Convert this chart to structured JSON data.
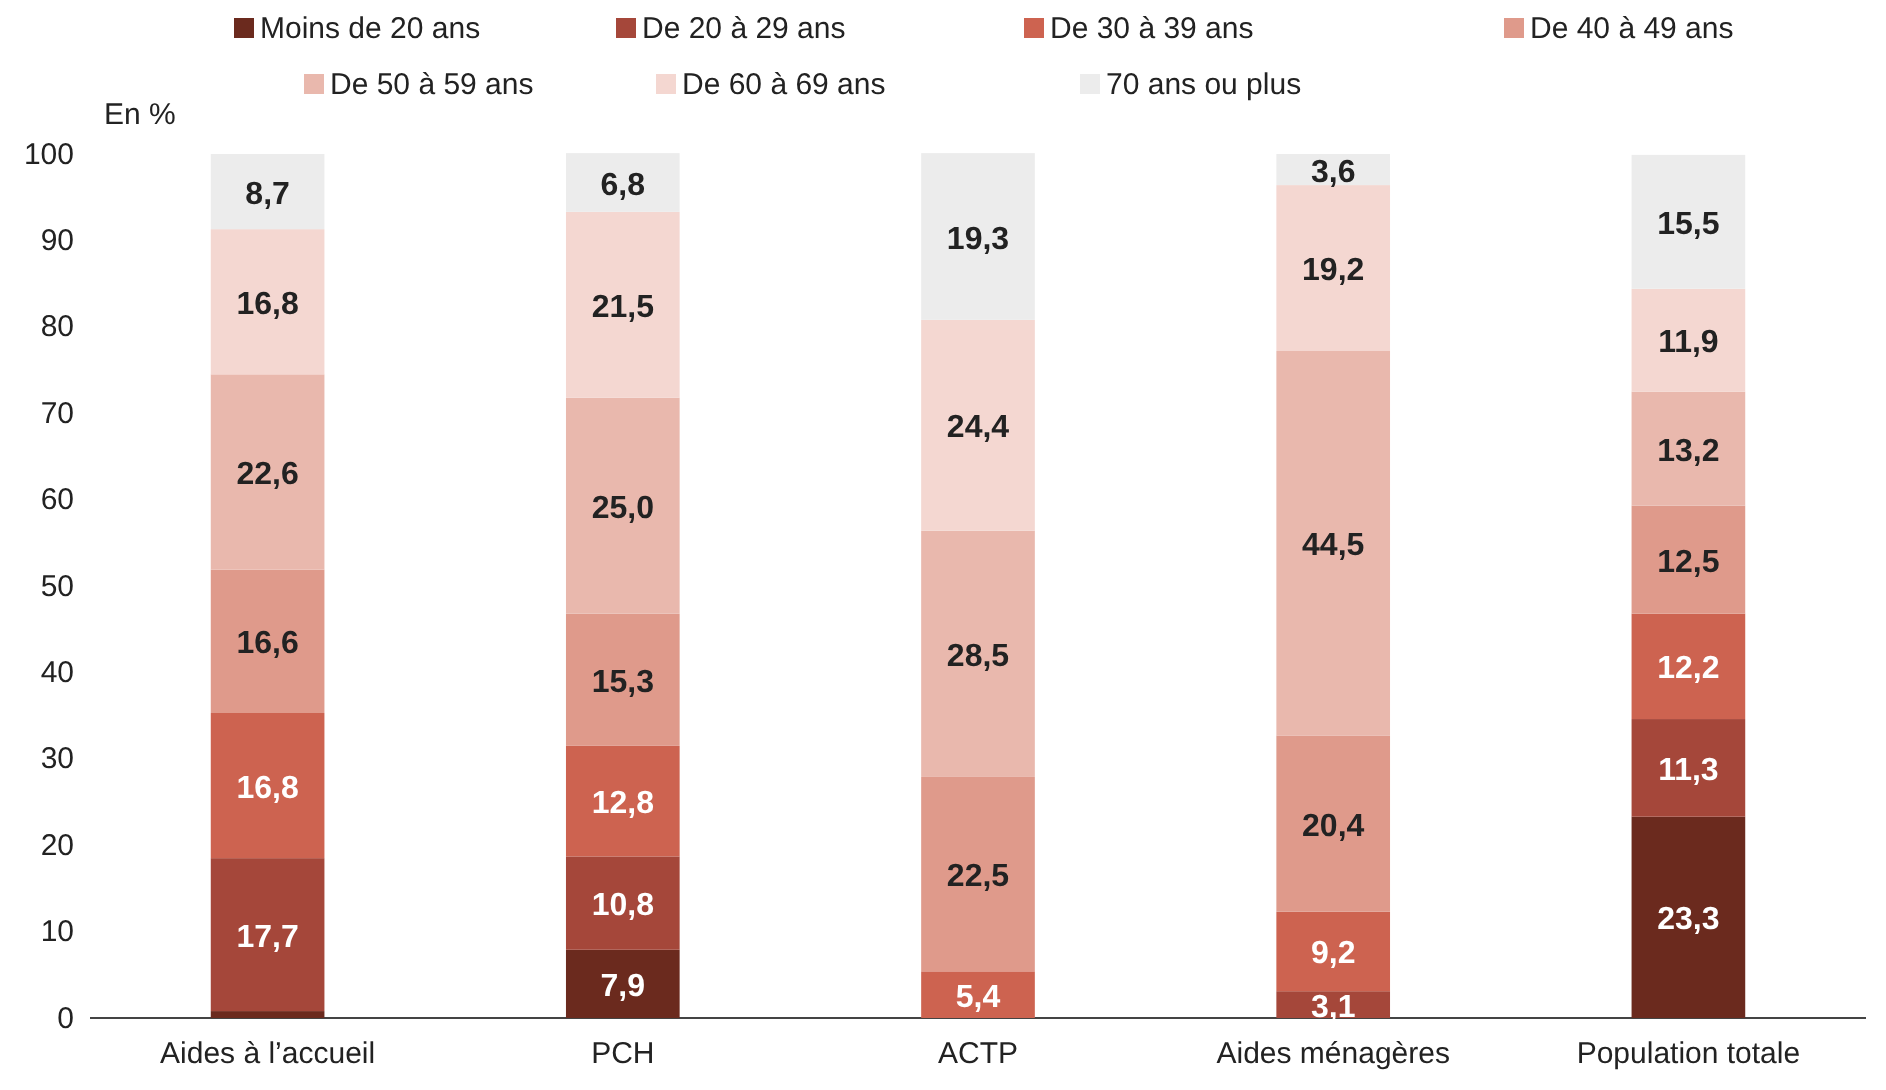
{
  "chart_data": {
    "type": "bar",
    "stacked": true,
    "ylabel": "En %",
    "categories": [
      "Aides à l’accueil",
      "PCH",
      "ACTP",
      "Aides ménagères",
      "Population totale"
    ],
    "ylim": [
      0,
      100
    ],
    "yticks": [
      0,
      10,
      20,
      30,
      40,
      50,
      60,
      70,
      80,
      90,
      100
    ],
    "legend": "top",
    "grid": false,
    "series": [
      {
        "name": "Moins de 20 ans",
        "color": "#6b2a1e",
        "values": [
          0.8,
          7.9,
          0,
          0,
          23.3
        ],
        "value_labels": [
          null,
          "7,9",
          null,
          null,
          "23,3"
        ]
      },
      {
        "name": "De 20 à 29 ans",
        "color": "#a5473a",
        "values": [
          17.7,
          10.8,
          0,
          3.1,
          11.3
        ],
        "value_labels": [
          "17,7",
          "10,8",
          null,
          "3,1",
          "11,3"
        ]
      },
      {
        "name": "De 30 à 39 ans",
        "color": "#cd6350",
        "values": [
          16.8,
          12.8,
          5.4,
          9.2,
          12.2
        ],
        "value_labels": [
          "16,8",
          "12,8",
          "5,4",
          "9,2",
          "12,2"
        ]
      },
      {
        "name": "De 40 à 49 ans",
        "color": "#df9a8b",
        "values": [
          16.6,
          15.3,
          22.5,
          20.4,
          12.5
        ],
        "value_labels": [
          "16,6",
          "15,3",
          "22,5",
          "20,4",
          "12,5"
        ]
      },
      {
        "name": "De 50 à 59 ans",
        "color": "#e9b8ad",
        "values": [
          22.6,
          25.0,
          28.5,
          44.5,
          13.2
        ],
        "value_labels": [
          "22,6",
          "25,0",
          "28,5",
          "44,5",
          "13,2"
        ]
      },
      {
        "name": "De 60 à 69 ans",
        "color": "#f4d7d1",
        "values": [
          16.8,
          21.5,
          24.4,
          19.2,
          11.9
        ],
        "value_labels": [
          "16,8",
          "21,5",
          "24,4",
          "19,2",
          "11,9"
        ]
      },
      {
        "name": "70 ans ou plus",
        "color": "#ececec",
        "values": [
          8.7,
          6.8,
          19.3,
          3.6,
          15.5
        ],
        "value_labels": [
          "8,7",
          "6,8",
          "19,3",
          "3,6",
          "15,5"
        ]
      }
    ]
  }
}
